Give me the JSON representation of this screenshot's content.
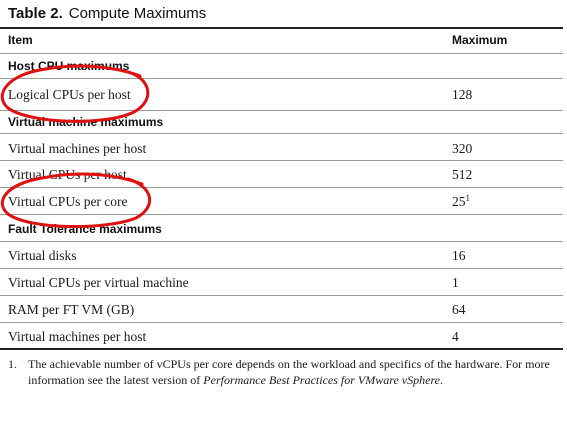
{
  "table": {
    "label": "Table 2.",
    "title": "Compute Maximums",
    "columns": [
      "Item",
      "Maximum"
    ],
    "sections": [
      {
        "heading": "Host CPU maximums",
        "rows": [
          {
            "item": "Logical CPUs per host",
            "value": "128"
          }
        ]
      },
      {
        "heading": "Virtual machine maximums",
        "rows": [
          {
            "item": "Virtual machines per host",
            "value": "320"
          },
          {
            "item": "Virtual CPUs per host",
            "value": "512"
          },
          {
            "item": "Virtual CPUs per core",
            "value": "25",
            "footnote_ref": "1"
          }
        ]
      },
      {
        "heading": "Fault Tolerance maximums",
        "rows": [
          {
            "item": "Virtual disks",
            "value": "16"
          },
          {
            "item": "Virtual CPUs per virtual machine",
            "value": "1"
          },
          {
            "item": "RAM per FT VM (GB)",
            "value": "64"
          },
          {
            "item": "Virtual machines per host",
            "value": "4"
          }
        ]
      }
    ],
    "footnote": {
      "number": "1.",
      "text": "The achievable number of vCPUs per core depends on the workload and specifics of the hardware. For more information see the latest version of ",
      "italic_ref": "Performance Best Practices for VMware vSphere",
      "end": "."
    }
  },
  "annotations": {
    "color": "#e01010",
    "circled_items": [
      "Logical CPUs per host",
      "Virtual CPUs per core"
    ]
  }
}
